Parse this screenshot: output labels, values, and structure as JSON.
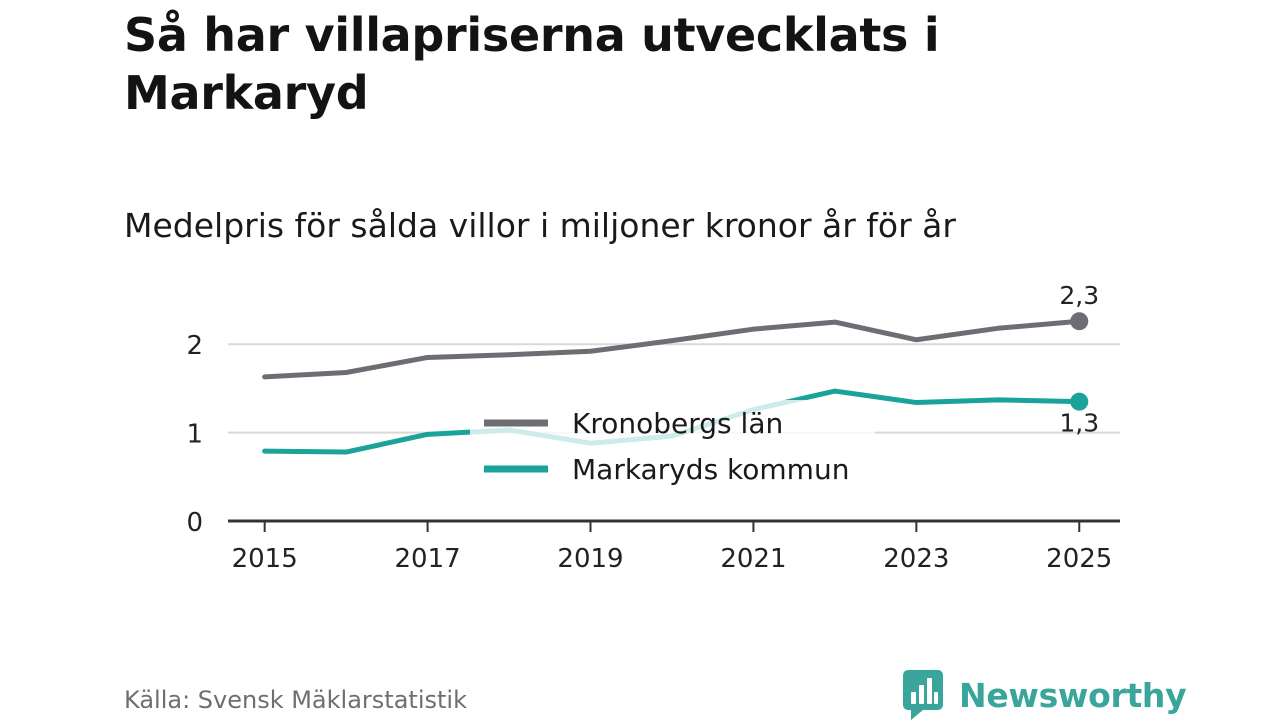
{
  "title": "Så har villapriserna utvecklats i Markaryd",
  "subtitle": "Medelpris för sålda villor i miljoner kronor år för år",
  "source": "Källa: Svensk Mäklarstatistik",
  "brand": {
    "name": "Newsworthy",
    "icon": "bar-chart-speech-bubble-icon",
    "color": "#3aa59b"
  },
  "colors": {
    "grid": "#d9d9d9",
    "axis": "#333333"
  },
  "chart_data": {
    "type": "line",
    "title": "Så har villapriserna utvecklats i Markaryd",
    "subtitle": "Medelpris för sålda villor i miljoner kronor år för år",
    "xlabel": "",
    "ylabel": "",
    "x": [
      2015,
      2016,
      2017,
      2018,
      2019,
      2020,
      2021,
      2022,
      2023,
      2024,
      2025
    ],
    "xticks": [
      2015,
      2017,
      2019,
      2021,
      2023,
      2025
    ],
    "xtick_labels": [
      "2015",
      "2017",
      "2019",
      "2021",
      "2023",
      "2025"
    ],
    "yticks": [
      0,
      1,
      2
    ],
    "ytick_labels": [
      "0",
      "1",
      "2"
    ],
    "ylim": [
      0,
      2.5
    ],
    "xlim": [
      2014.55,
      2025.5
    ],
    "grid": true,
    "legend_position": "center",
    "series": [
      {
        "name": "Kronobergs län",
        "color": "#6e6d74",
        "values": [
          1.63,
          1.68,
          1.85,
          1.88,
          1.92,
          2.04,
          2.17,
          2.25,
          2.05,
          2.18,
          2.26
        ],
        "end_label": "2,3"
      },
      {
        "name": "Markaryds kommun",
        "color": "#1aa39a",
        "values": [
          0.79,
          0.78,
          0.98,
          1.03,
          0.88,
          0.96,
          1.26,
          1.47,
          1.34,
          1.37,
          1.35
        ],
        "end_label": "1,3"
      }
    ]
  }
}
